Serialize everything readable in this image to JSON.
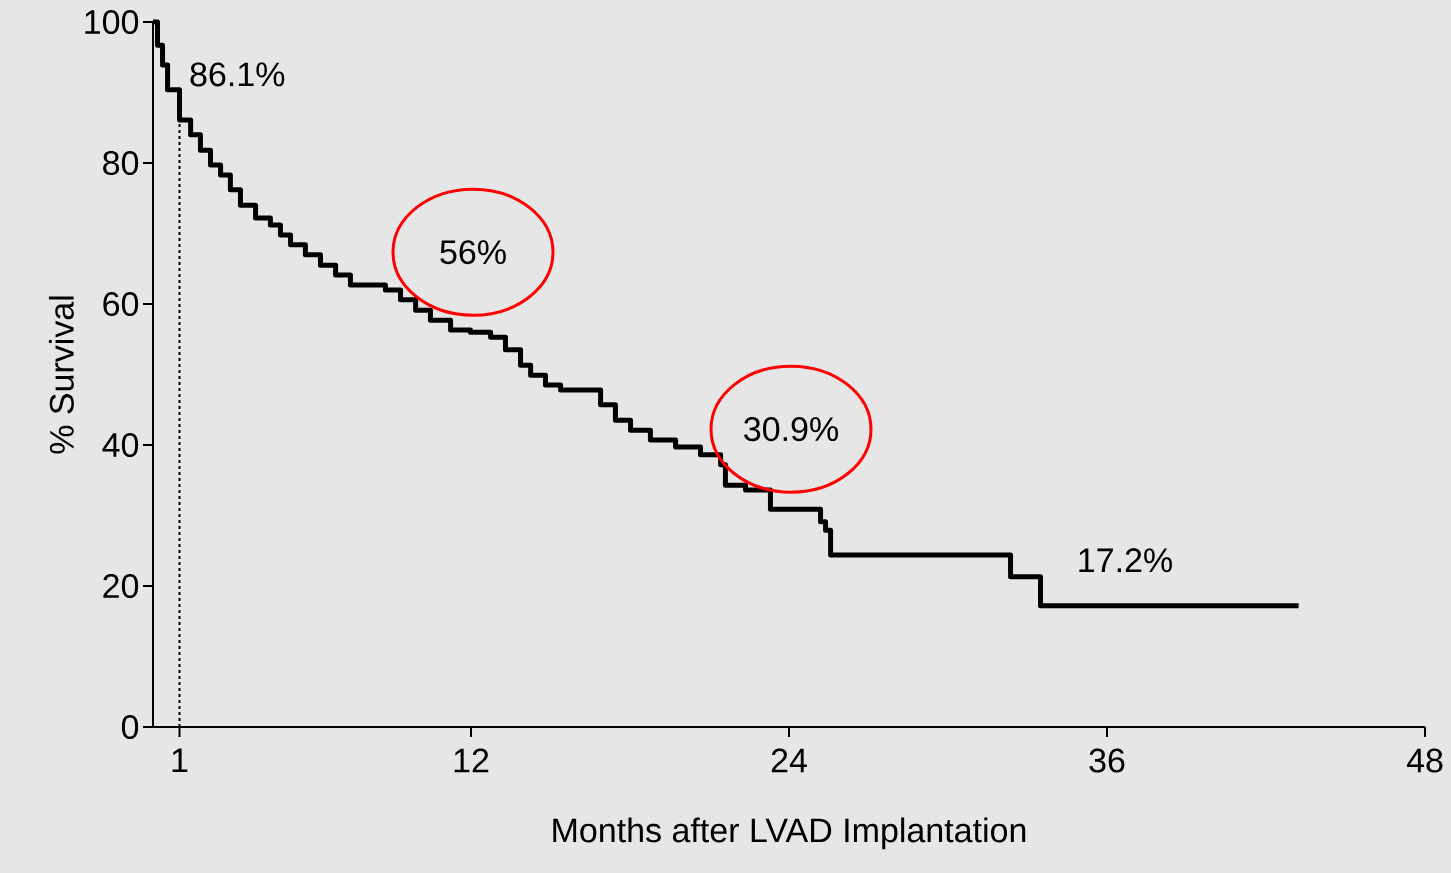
{
  "chart_data": {
    "type": "step",
    "xlabel": "Months after LVAD Implantation",
    "ylabel": "% Survival",
    "x": [
      0,
      0.17,
      0.36,
      0.55,
      1.0,
      1.42,
      1.79,
      2.17,
      2.55,
      2.92,
      3.3,
      3.87,
      4.43,
      4.81,
      5.19,
      5.75,
      6.32,
      6.89,
      7.45,
      8.77,
      9.34,
      9.91,
      10.47,
      11.23,
      11.98,
      12.74,
      13.3,
      13.87,
      14.25,
      14.81,
      15.38,
      16.89,
      17.45,
      18.02,
      18.77,
      19.72,
      20.66,
      21.42,
      21.6,
      22.36,
      23.3,
      25.19,
      25.38,
      25.57,
      32.36,
      33.49,
      43.23
    ],
    "values": [
      100,
      96.7,
      93.9,
      90.4,
      86.1,
      84.0,
      81.8,
      79.7,
      78.3,
      76.2,
      74.0,
      72.2,
      71.2,
      69.8,
      68.4,
      67.0,
      65.5,
      64.1,
      62.7,
      62.0,
      60.6,
      59.1,
      57.7,
      56.3,
      56,
      55.3,
      53.5,
      51.3,
      49.9,
      48.5,
      47.8,
      45.7,
      43.5,
      42.1,
      40.7,
      39.7,
      38.6,
      37.2,
      34.3,
      33.6,
      30.9,
      29.1,
      27.9,
      24.4,
      21.3,
      17.2,
      17.2
    ],
    "color": "#000000",
    "line_style": "solid",
    "xlim": [
      0,
      48
    ],
    "xticks": [
      1,
      12,
      24,
      36,
      48
    ],
    "ylim": [
      0,
      100
    ],
    "yticks": [
      0,
      20,
      40,
      60,
      80,
      100
    ],
    "ref_lines": [
      {
        "axis": "x",
        "value": 1,
        "line_style": "dashed",
        "color": "#000000"
      }
    ],
    "annotations": [
      {
        "text": "86.1%",
        "x": 1,
        "y": 86.1
      },
      {
        "text": "56%",
        "x": 12,
        "y": 56
      },
      {
        "text": "30.9%",
        "x": 24,
        "y": 30.9
      },
      {
        "text": "17.2%",
        "x": 34.5,
        "y": 17.2
      }
    ]
  }
}
